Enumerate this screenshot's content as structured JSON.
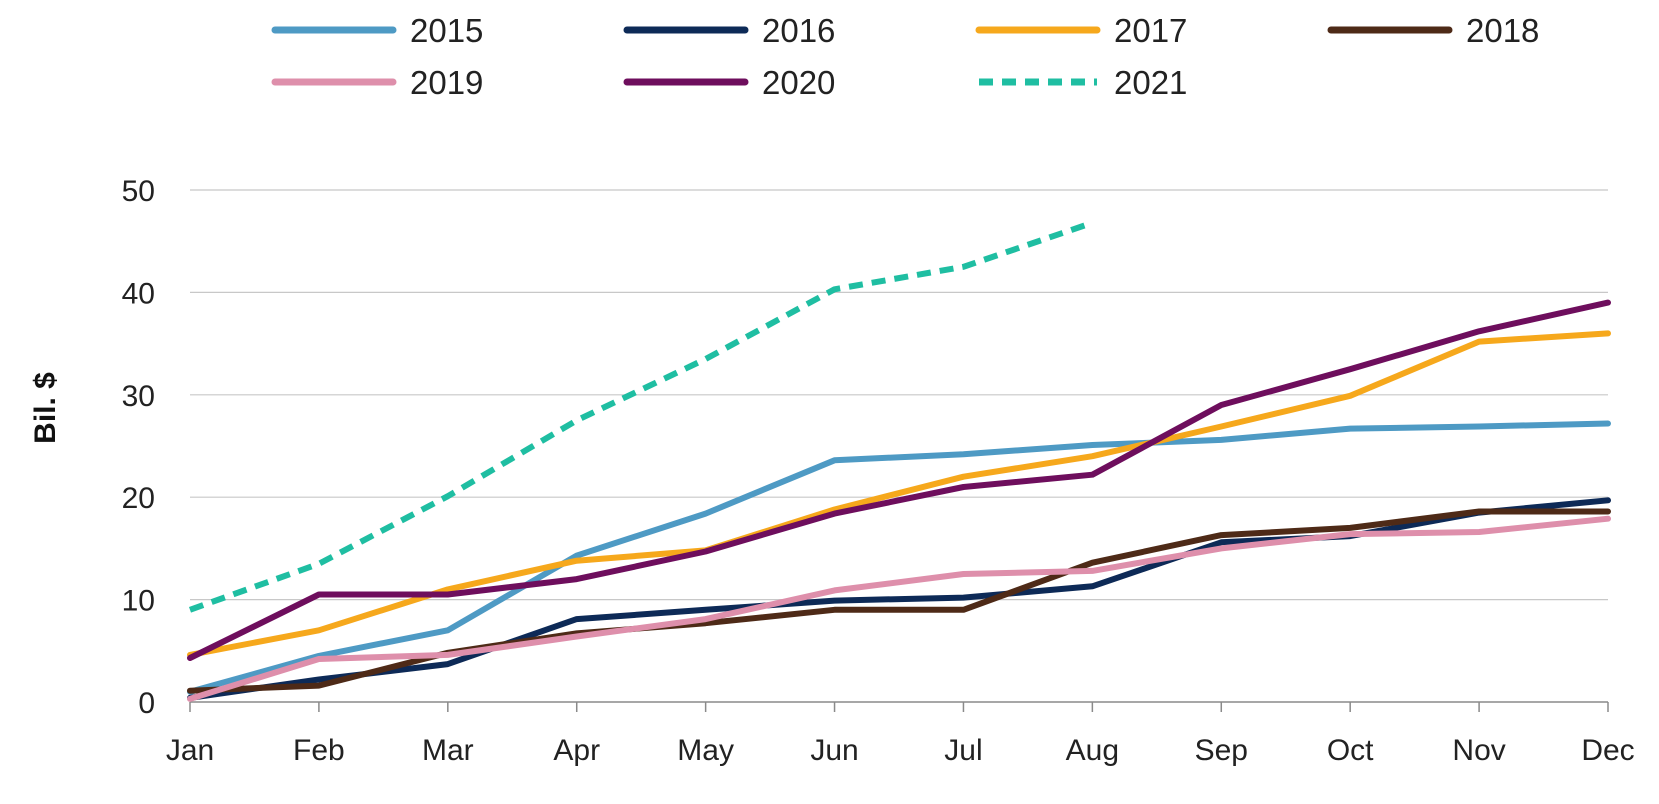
{
  "chart_data": {
    "type": "line",
    "title": "",
    "xlabel": "",
    "ylabel": "Bil. $",
    "categories": [
      "Jan",
      "Feb",
      "Mar",
      "Apr",
      "May",
      "Jun",
      "Jul",
      "Aug",
      "Sep",
      "Oct",
      "Nov",
      "Dec"
    ],
    "ylim": [
      0,
      50
    ],
    "yticks": [
      "0",
      "10",
      "20",
      "30",
      "40",
      "50"
    ],
    "grid": "horizontal",
    "legend_position": "top",
    "series": [
      {
        "name": "2015",
        "color": "#4e9ac4",
        "dash": "solid",
        "values": [
          1.0,
          4.5,
          7.0,
          14.3,
          18.4,
          23.6,
          24.2,
          25.1,
          25.6,
          26.7,
          26.9,
          27.2
        ]
      },
      {
        "name": "2016",
        "color": "#0d2a57",
        "dash": "solid",
        "values": [
          0.4,
          2.2,
          3.7,
          8.1,
          9.0,
          9.9,
          10.2,
          11.3,
          15.6,
          16.2,
          18.5,
          19.7
        ]
      },
      {
        "name": "2017",
        "color": "#f6a81c",
        "dash": "solid",
        "values": [
          4.6,
          7.0,
          11.0,
          13.8,
          14.8,
          18.8,
          22.0,
          24.0,
          26.9,
          29.9,
          35.2,
          36.0
        ]
      },
      {
        "name": "2018",
        "color": "#4e2a17",
        "dash": "solid",
        "values": [
          1.1,
          1.6,
          4.8,
          6.7,
          7.7,
          9.0,
          9.0,
          13.6,
          16.3,
          17.0,
          18.6,
          18.6
        ]
      },
      {
        "name": "2019",
        "color": "#de8fab",
        "dash": "solid",
        "values": [
          0.3,
          4.2,
          4.6,
          6.4,
          8.1,
          10.9,
          12.5,
          12.8,
          15.0,
          16.4,
          16.6,
          17.9
        ]
      },
      {
        "name": "2020",
        "color": "#6e0e5d",
        "dash": "solid",
        "values": [
          4.3,
          10.5,
          10.5,
          12.0,
          14.7,
          18.4,
          21.0,
          22.2,
          29.0,
          32.5,
          36.2,
          39.0
        ]
      },
      {
        "name": "2021",
        "color": "#1fbea2",
        "dash": "dashed",
        "values": [
          9.0,
          13.5,
          20.1,
          27.5,
          33.5,
          40.3,
          42.5,
          46.8,
          null,
          null,
          null,
          null
        ]
      }
    ]
  }
}
